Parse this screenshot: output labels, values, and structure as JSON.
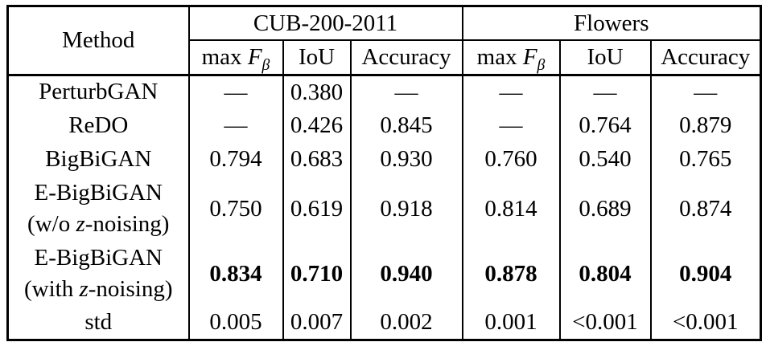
{
  "table": {
    "header": {
      "method_label": "Method",
      "groups": [
        {
          "label": "CUB-200-2011"
        },
        {
          "label": "Flowers"
        }
      ],
      "metrics": [
        [
          {
            "t": "max "
          },
          {
            "t": "F",
            "i": true
          },
          {
            "t": "β",
            "sub": true,
            "i": true
          }
        ],
        [
          {
            "t": "IoU"
          }
        ],
        [
          {
            "t": "Accuracy"
          }
        ]
      ]
    },
    "rows": [
      {
        "method": [
          [
            {
              "t": "PerturbGAN"
            }
          ]
        ],
        "values": [
          "—",
          "0.380",
          "—",
          "—",
          "—",
          "—"
        ],
        "bold_values": false
      },
      {
        "method": [
          [
            {
              "t": "ReDO"
            }
          ]
        ],
        "values": [
          "—",
          "0.426",
          "0.845",
          "—",
          "0.764",
          "0.879"
        ],
        "bold_values": false
      },
      {
        "method": [
          [
            {
              "t": "BigBiGAN"
            }
          ]
        ],
        "values": [
          "0.794",
          "0.683",
          "0.930",
          "0.760",
          "0.540",
          "0.765"
        ],
        "bold_values": false
      },
      {
        "method": [
          [
            {
              "t": "E-BigBiGAN"
            }
          ],
          [
            {
              "t": "(w/o "
            },
            {
              "t": "z",
              "i": true
            },
            {
              "t": "-noising)"
            }
          ]
        ],
        "values": [
          "0.750",
          "0.619",
          "0.918",
          "0.814",
          "0.689",
          "0.874"
        ],
        "bold_values": false
      },
      {
        "method": [
          [
            {
              "t": "E-BigBiGAN"
            }
          ],
          [
            {
              "t": "(with "
            },
            {
              "t": "z",
              "i": true
            },
            {
              "t": "-noising)"
            }
          ]
        ],
        "values": [
          "0.834",
          "0.710",
          "0.940",
          "0.878",
          "0.804",
          "0.904"
        ],
        "bold_values": true
      },
      {
        "method": [
          [
            {
              "t": "std"
            }
          ]
        ],
        "values": [
          "0.005",
          "0.007",
          "0.002",
          "0.001",
          "<0.001",
          "<0.001"
        ],
        "bold_values": false
      }
    ],
    "colors": {
      "border": "#000000",
      "text": "#000000",
      "background": "#ffffff"
    }
  }
}
